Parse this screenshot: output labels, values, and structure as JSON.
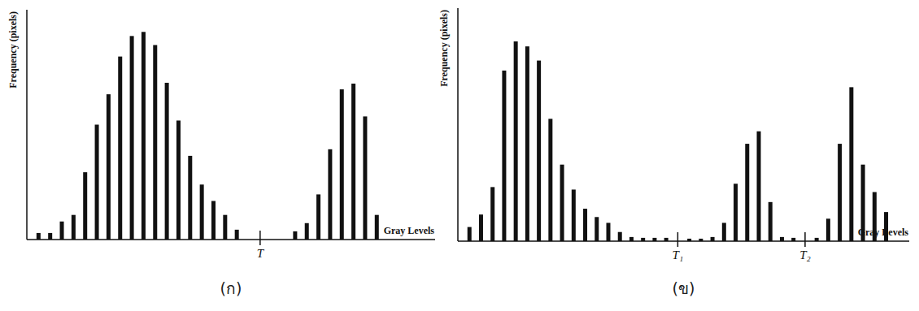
{
  "chart_data": [
    {
      "type": "bar",
      "title": "(ก)",
      "x_label": "Gray Levels",
      "y_label": "Frequency (pixels)",
      "x": [
        0,
        1,
        2,
        3,
        4,
        5,
        6,
        7,
        8,
        9,
        10,
        11,
        12,
        13,
        14,
        15,
        16,
        17,
        22,
        23,
        24,
        25,
        26,
        27,
        28,
        29
      ],
      "values": [
        8,
        8,
        22,
        30,
        82,
        140,
        177,
        223,
        248,
        253,
        237,
        191,
        145,
        102,
        67,
        47,
        30,
        12,
        10,
        20,
        55,
        110,
        183,
        190,
        150,
        30
      ],
      "xlim": [
        -1,
        34
      ],
      "ylim": [
        0,
        280
      ],
      "tick_labels": false,
      "color": "#111111",
      "thresholds": [
        {
          "value": 19,
          "label": "T"
        }
      ]
    },
    {
      "type": "bar",
      "title": "(ข)",
      "x_label": "Gray Levels",
      "y_label": "Frequency (pixels)",
      "x": [
        0,
        1,
        2,
        3,
        4,
        5,
        6,
        7,
        8,
        9,
        10,
        11,
        12,
        13,
        14,
        15,
        16,
        17,
        19,
        20,
        21,
        22,
        23,
        24,
        25,
        26,
        27,
        28,
        30,
        31,
        32,
        33,
        34,
        35,
        36
      ],
      "values": [
        17,
        32,
        65,
        205,
        240,
        234,
        217,
        147,
        92,
        62,
        39,
        29,
        22,
        11,
        5,
        4,
        4,
        4,
        3,
        3,
        5,
        22,
        69,
        117,
        132,
        47,
        5,
        4,
        4,
        27,
        117,
        185,
        92,
        59,
        35
      ],
      "xlim": [
        -1,
        38
      ],
      "ylim": [
        0,
        280
      ],
      "tick_labels": false,
      "color": "#111111",
      "thresholds": [
        {
          "value": 18,
          "label": "T₁"
        },
        {
          "value": 29,
          "label": "T₂"
        }
      ]
    }
  ]
}
